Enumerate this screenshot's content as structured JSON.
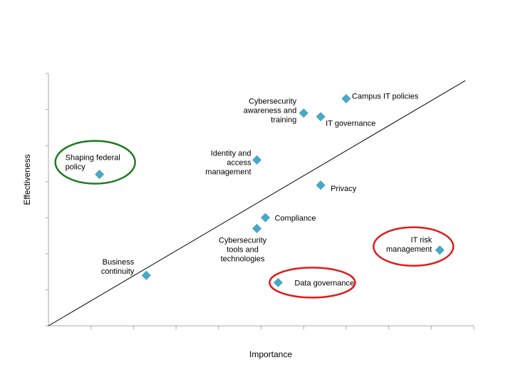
{
  "chart_data": {
    "type": "scatter",
    "xlabel": "Importance",
    "ylabel": "Effectiveness",
    "xlim": [
      0,
      10
    ],
    "ylim": [
      0,
      7
    ],
    "x_tick_count": 10,
    "y_tick_count": 7,
    "grid": false,
    "reference_line": {
      "from": [
        0,
        0
      ],
      "to": [
        9.8,
        6.8
      ]
    },
    "marker_color": "#4aa9c9",
    "points": [
      {
        "name": "Shaping federal policy",
        "x": 1.2,
        "y": 4.2,
        "label_lines": [
          "Shaping federal",
          "policy"
        ],
        "highlight": "green"
      },
      {
        "name": "Identity and access management",
        "x": 4.9,
        "y": 4.6,
        "label_lines": [
          "Identity and",
          "access",
          "management"
        ]
      },
      {
        "name": "Cybersecurity awareness and training",
        "x": 6.0,
        "y": 5.9,
        "label_lines": [
          "Cybersecurity",
          "awareness and",
          "training"
        ]
      },
      {
        "name": "IT governance",
        "x": 6.4,
        "y": 5.8,
        "label_lines": [
          "IT governance"
        ]
      },
      {
        "name": "Campus IT policies",
        "x": 7.0,
        "y": 6.3,
        "label_lines": [
          "Campus IT policies"
        ]
      },
      {
        "name": "Privacy",
        "x": 6.4,
        "y": 3.9,
        "label_lines": [
          "Privacy"
        ]
      },
      {
        "name": "Compliance",
        "x": 5.1,
        "y": 3.0,
        "label_lines": [
          "Compliance"
        ]
      },
      {
        "name": "Cybersecurity tools and technologies",
        "x": 4.9,
        "y": 2.7,
        "label_lines": [
          "Cybersecurity",
          "tools and",
          "technologies"
        ]
      },
      {
        "name": "Business continuity",
        "x": 2.3,
        "y": 1.4,
        "label_lines": [
          "Business",
          "continuity"
        ]
      },
      {
        "name": "Data governance",
        "x": 5.4,
        "y": 1.2,
        "label_lines": [
          "Data governance"
        ],
        "highlight": "red"
      },
      {
        "name": "IT risk management",
        "x": 9.2,
        "y": 2.1,
        "label_lines": [
          "IT risk",
          "management"
        ],
        "highlight": "red"
      }
    ],
    "highlight_colors": {
      "green": "#1f7a1f",
      "red": "#e01b1b"
    }
  }
}
